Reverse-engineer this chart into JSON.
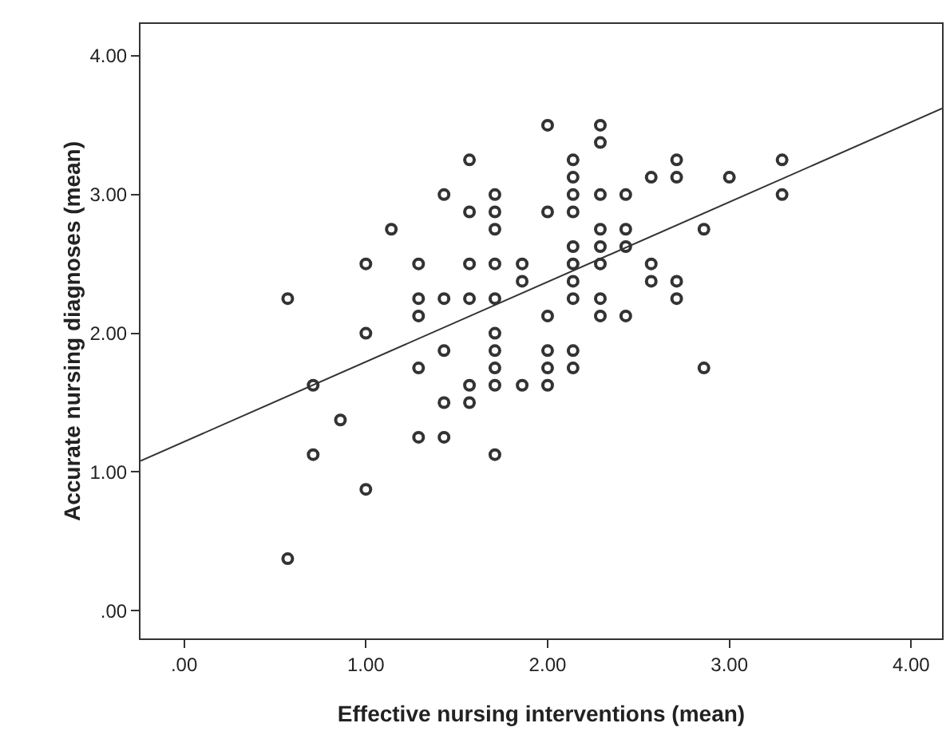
{
  "chart_data": {
    "type": "scatter",
    "xlabel": "Effective nursing interventions (mean)",
    "ylabel": "Accurate nursing diagnoses (mean)",
    "xlim": [
      -0.24,
      4.17
    ],
    "ylim": [
      -0.2,
      4.23
    ],
    "xticks": [
      {
        "value": 0,
        "label": ".00"
      },
      {
        "value": 1,
        "label": "1.00"
      },
      {
        "value": 2,
        "label": "2.00"
      },
      {
        "value": 3,
        "label": "3.00"
      },
      {
        "value": 4,
        "label": "4.00"
      }
    ],
    "yticks": [
      {
        "value": 0,
        "label": ".00"
      },
      {
        "value": 1,
        "label": "1.00"
      },
      {
        "value": 2,
        "label": "2.00"
      },
      {
        "value": 3,
        "label": "3.00"
      },
      {
        "value": 4,
        "label": "4.00"
      }
    ],
    "grid": false,
    "marker": "circle",
    "series": [
      {
        "color": "#333333",
        "x": [
          1.43,
          1.14,
          1.0,
          1.29,
          0.57,
          1.29,
          1.43,
          1.29,
          1.0,
          1.43,
          1.29,
          0.71,
          1.43,
          0.86,
          1.29,
          1.43,
          0.71,
          1.0,
          0.57,
          2.0,
          2.29,
          2.29,
          1.57,
          2.14,
          2.14,
          2.57,
          1.71,
          2.14,
          2.29,
          2.43,
          1.57,
          1.71,
          2.0,
          2.14,
          1.71,
          2.29,
          2.43,
          2.14,
          2.29,
          2.43,
          1.57,
          1.71,
          1.86,
          2.14,
          2.29,
          2.57,
          1.86,
          2.14,
          2.57,
          1.57,
          1.71,
          2.14,
          2.29,
          2.0,
          2.29,
          2.43,
          1.71,
          1.71,
          2.0,
          2.14,
          1.71,
          2.0,
          2.14,
          1.57,
          1.71,
          1.86,
          2.0,
          1.57,
          1.71,
          2.71,
          2.71,
          3.0,
          3.29,
          3.29,
          2.86,
          2.71,
          2.71,
          2.86
        ],
        "values": [
          3.0,
          2.75,
          2.5,
          2.5,
          2.25,
          2.25,
          2.25,
          2.125,
          2.0,
          1.875,
          1.75,
          1.625,
          1.5,
          1.375,
          1.25,
          1.25,
          1.125,
          0.875,
          0.375,
          3.5,
          3.5,
          3.375,
          3.25,
          3.25,
          3.125,
          3.125,
          3.0,
          3.0,
          3.0,
          3.0,
          2.875,
          2.875,
          2.875,
          2.875,
          2.75,
          2.75,
          2.75,
          2.625,
          2.625,
          2.625,
          2.5,
          2.5,
          2.5,
          2.5,
          2.5,
          2.5,
          2.375,
          2.375,
          2.375,
          2.25,
          2.25,
          2.25,
          2.25,
          2.125,
          2.125,
          2.125,
          2.0,
          1.875,
          1.875,
          1.875,
          1.75,
          1.75,
          1.75,
          1.625,
          1.625,
          1.625,
          1.625,
          1.5,
          1.125,
          3.25,
          3.125,
          3.125,
          3.25,
          3.0,
          2.75,
          2.375,
          2.25,
          1.75
        ]
      },
      {
        "type": "line",
        "color": "#333333",
        "marker": "none",
        "line_style": "solid",
        "x": [
          -0.24,
          4.17
        ],
        "values": [
          1.08,
          3.62
        ]
      }
    ]
  }
}
